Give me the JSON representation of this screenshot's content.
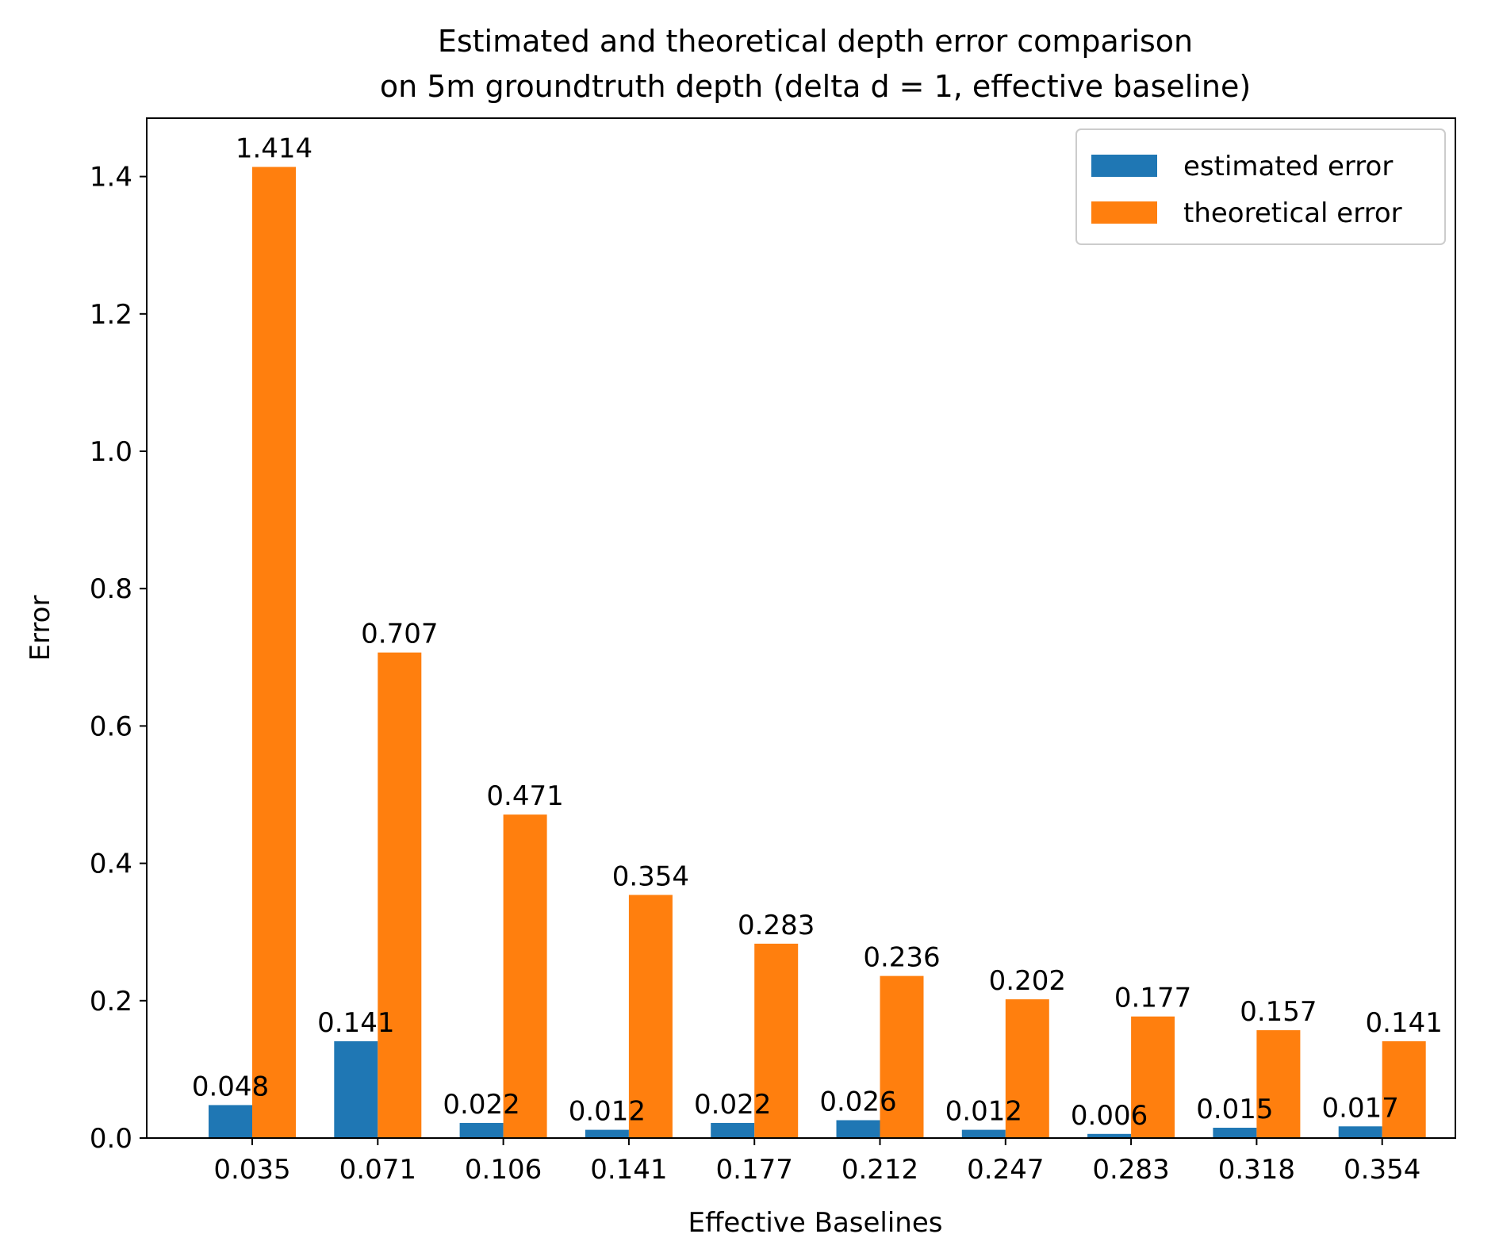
{
  "chart_data": {
    "type": "bar",
    "title_lines": [
      "Estimated and theoretical depth error comparison",
      "on 5m groundtruth depth (delta d = 1, effective baseline)"
    ],
    "xlabel": "Effective Baselines",
    "ylabel": "Error",
    "categories": [
      "0.035",
      "0.071",
      "0.106",
      "0.141",
      "0.177",
      "0.212",
      "0.247",
      "0.283",
      "0.318",
      "0.354"
    ],
    "series": [
      {
        "name": "estimated error",
        "color": "#1f77b4",
        "values": [
          0.048,
          0.141,
          0.022,
          0.012,
          0.022,
          0.026,
          0.012,
          0.006,
          0.015,
          0.017
        ],
        "labels": [
          "0.048",
          "0.141",
          "0.022",
          "0.012",
          "0.022",
          "0.026",
          "0.012",
          "0.006",
          "0.015",
          "0.017"
        ]
      },
      {
        "name": "theoretical error",
        "color": "#ff7f0e",
        "values": [
          1.414,
          0.707,
          0.471,
          0.354,
          0.283,
          0.236,
          0.202,
          0.177,
          0.157,
          0.141
        ],
        "labels": [
          "1.414",
          "0.707",
          "0.471",
          "0.354",
          "0.283",
          "0.236",
          "0.202",
          "0.177",
          "0.157",
          "0.141"
        ]
      }
    ],
    "yticks": [
      "0.0",
      "0.2",
      "0.4",
      "0.6",
      "0.8",
      "1.0",
      "1.2",
      "1.4"
    ],
    "ylim": [
      0,
      1.485
    ],
    "grid": false,
    "legend_position": "top-right"
  }
}
